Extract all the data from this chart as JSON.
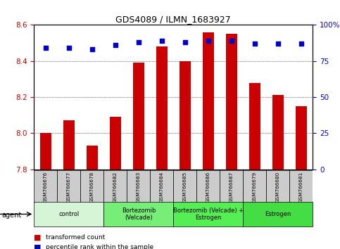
{
  "title": "GDS4089 / ILMN_1683927",
  "samples": [
    "GSM766676",
    "GSM766677",
    "GSM766678",
    "GSM766682",
    "GSM766683",
    "GSM766684",
    "GSM766685",
    "GSM766686",
    "GSM766687",
    "GSM766679",
    "GSM766680",
    "GSM766681"
  ],
  "transformed_count": [
    8.0,
    8.07,
    7.93,
    8.09,
    8.39,
    8.48,
    8.4,
    8.56,
    8.55,
    8.28,
    8.21,
    8.15
  ],
  "percentile_rank": [
    84,
    84,
    83,
    86,
    88,
    89,
    88,
    89,
    89,
    87,
    87,
    87
  ],
  "ylim_left": [
    7.8,
    8.6
  ],
  "ylim_right": [
    0,
    100
  ],
  "yticks_left": [
    7.8,
    8.0,
    8.2,
    8.4,
    8.6
  ],
  "yticks_right": [
    0,
    25,
    50,
    75,
    100
  ],
  "groups": [
    {
      "label": "control",
      "start": 0,
      "end": 3,
      "color": "#d6f5d6"
    },
    {
      "label": "Bortezomib\n(Velcade)",
      "start": 3,
      "end": 6,
      "color": "#77ee77"
    },
    {
      "label": "Bortezomib (Velcade) +\nEstrogen",
      "start": 6,
      "end": 9,
      "color": "#55ee55"
    },
    {
      "label": "Estrogen",
      "start": 9,
      "end": 12,
      "color": "#44dd44"
    }
  ],
  "bar_color": "#cc0000",
  "dot_color": "#0000cc",
  "left_tick_color": "#cc0000",
  "right_tick_color": "#0000cc",
  "background_color": "#ffffff",
  "grid_color": "#000000",
  "sample_box_color": "#cccccc"
}
